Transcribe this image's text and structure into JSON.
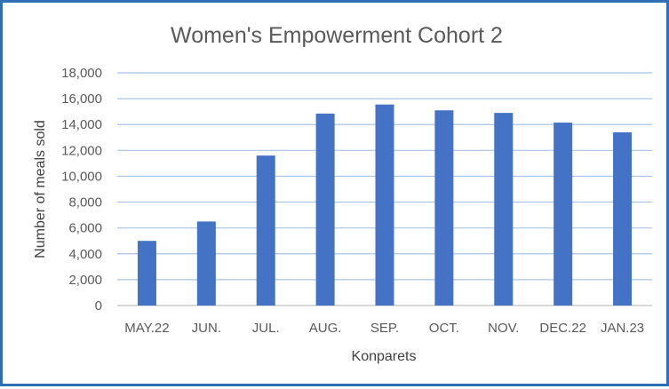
{
  "chart_data": {
    "type": "bar",
    "title": "Women's Empowerment Cohort 2",
    "xlabel": "Konparets",
    "ylabel": "Number of meals sold",
    "categories": [
      "MAY.22",
      "JUN.",
      "JUL.",
      "AUG.",
      "SEP.",
      "OCT.",
      "NOV.",
      "DEC.22",
      "JAN.23"
    ],
    "values": [
      5000,
      6500,
      11600,
      14850,
      15550,
      15100,
      14900,
      14150,
      13400
    ],
    "yticks": [
      "0",
      "2,000",
      "4,000",
      "6,000",
      "8,000",
      "10,000",
      "12,000",
      "14,000",
      "16,000",
      "18,000"
    ],
    "ylim": [
      0,
      18000
    ],
    "grid": true,
    "legend": "none",
    "bar_color": "#4472c4",
    "border_color": "#2f6fb5"
  }
}
